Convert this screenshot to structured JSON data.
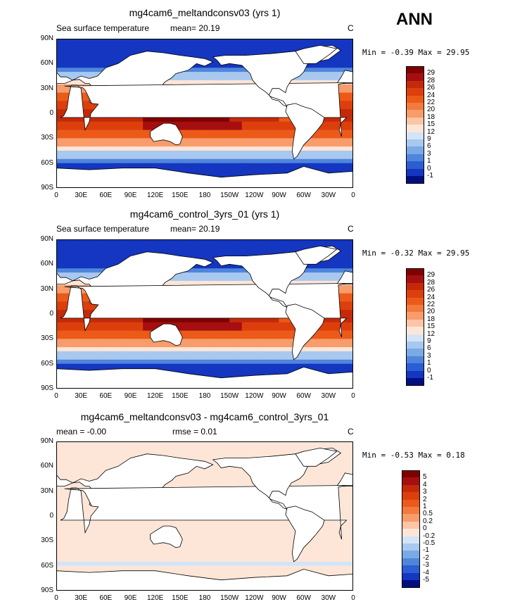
{
  "season": "ANN",
  "panels": [
    {
      "title": "mg4cam6_meltandconsv03 (yrs 1)",
      "variable": "Sea surface temperature",
      "stat1_label": "mean=",
      "stat1_value": "20.19",
      "stat2_label": "",
      "stat2_value": "",
      "unit": "C",
      "min_label": "Min =",
      "min_value": "-0.39",
      "max_label": "Max =",
      "max_value": "29.95",
      "colorbar": {
        "labels": [
          "29",
          "28",
          "26",
          "24",
          "22",
          "20",
          "18",
          "15",
          "12",
          "9",
          "6",
          "3",
          "1",
          "0",
          "-1"
        ],
        "colors": [
          "#800000",
          "#a50f0f",
          "#c42a0a",
          "#dd3f0c",
          "#ec5a1a",
          "#f27a3c",
          "#f79c6a",
          "#fbc5a6",
          "#fde6d8",
          "#d4e4f7",
          "#a8c8f0",
          "#7aaae6",
          "#4f86dc",
          "#2a5ed2",
          "#1436c0",
          "#001080"
        ]
      }
    },
    {
      "title": "mg4cam6_control_3yrs_01 (yrs 1)",
      "variable": "Sea surface temperature",
      "stat1_label": "mean=",
      "stat1_value": "20.19",
      "stat2_label": "",
      "stat2_value": "",
      "unit": "C",
      "min_label": "Min =",
      "min_value": "-0.32",
      "max_label": "Max =",
      "max_value": "29.95",
      "colorbar": {
        "labels": [
          "29",
          "28",
          "26",
          "24",
          "22",
          "20",
          "18",
          "15",
          "12",
          "9",
          "6",
          "3",
          "1",
          "0",
          "-1"
        ],
        "colors": [
          "#800000",
          "#a50f0f",
          "#c42a0a",
          "#dd3f0c",
          "#ec5a1a",
          "#f27a3c",
          "#f79c6a",
          "#fbc5a6",
          "#fde6d8",
          "#d4e4f7",
          "#a8c8f0",
          "#7aaae6",
          "#4f86dc",
          "#2a5ed2",
          "#1436c0",
          "#001080"
        ]
      }
    },
    {
      "title": "mg4cam6_meltandconsv03 - mg4cam6_control_3yrs_01",
      "variable": "",
      "stat1_label": "mean =",
      "stat1_value": "-0.00",
      "stat2_label": "rmse =",
      "stat2_value": "0.01",
      "unit": "C",
      "min_label": "Min =",
      "min_value": "-0.53",
      "max_label": "Max =",
      "max_value": "0.18",
      "colorbar": {
        "labels": [
          "5",
          "4",
          "3",
          "2",
          "1",
          "0.5",
          "0.2",
          "0",
          "-0.2",
          "-0.5",
          "-1",
          "-2",
          "-3",
          "-4",
          "-5"
        ],
        "colors": [
          "#800000",
          "#a50f0f",
          "#c42a0a",
          "#dd3f0c",
          "#ec5a1a",
          "#f27a3c",
          "#f79c6a",
          "#fbc5a6",
          "#fde6d8",
          "#d4e4f7",
          "#a8c8f0",
          "#7aaae6",
          "#4f86dc",
          "#2a5ed2",
          "#1436c0",
          "#001080"
        ]
      }
    }
  ],
  "lat_labels": [
    "90N",
    "60N",
    "30N",
    "0",
    "30S",
    "60S",
    "90S"
  ],
  "lon_labels": [
    "0",
    "30E",
    "60E",
    "90E",
    "120E",
    "150E",
    "180",
    "150W",
    "120W",
    "90W",
    "60W",
    "30W",
    "0"
  ]
}
